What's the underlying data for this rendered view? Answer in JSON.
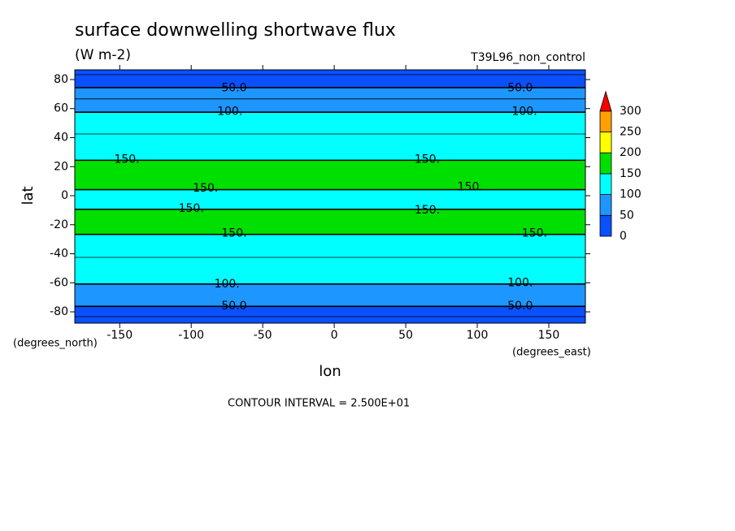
{
  "chart_data": {
    "type": "zonal_contour",
    "title": "surface downwelling shortwave flux",
    "subtitle": "(W m-2)",
    "dataset": "T39L96_non_control",
    "x_label": "lon",
    "y_label": "lat",
    "x_units": "(degrees_east)",
    "y_units": "(degrees_north)",
    "note": "CONTOUR INTERVAL = 2.500E+01",
    "contour_interval": 25,
    "xlim": [
      -181.4,
      175.6
    ],
    "ylim": [
      -87.8,
      86.7
    ],
    "xticks": [
      -150,
      -100,
      -50,
      0,
      50,
      100,
      150
    ],
    "yticks": [
      -80,
      -60,
      -40,
      -20,
      0,
      20,
      40,
      60,
      80
    ],
    "y": [
      85,
      80,
      75,
      70,
      65,
      60,
      55,
      50,
      45,
      40,
      35,
      30,
      25,
      20,
      15,
      10,
      5,
      0,
      -5,
      -10,
      -15,
      -20,
      -25,
      -30,
      -35,
      -40,
      -45,
      -50,
      -55,
      -60,
      -65,
      -70,
      -75,
      -80,
      -85
    ],
    "values": [
      20,
      35,
      48,
      65,
      80,
      95,
      105,
      115,
      122,
      128,
      134,
      140,
      148,
      165,
      175,
      170,
      152,
      140,
      135,
      152,
      170,
      168,
      155,
      140,
      132,
      128,
      122,
      116,
      110,
      102,
      90,
      75,
      55,
      35,
      20
    ],
    "levels": [
      0,
      50,
      100,
      150,
      200,
      250,
      300
    ],
    "level_colors": [
      "#0a50ff",
      "#1e96ff",
      "#00ffff",
      "#00e000",
      "#ffff00",
      "#ffa000",
      "#ff0000"
    ],
    "contour_labels": [
      {
        "label": "50.0",
        "lon": -70,
        "lat": 74
      },
      {
        "label": "50.0",
        "lon": 130,
        "lat": 74
      },
      {
        "label": "100.",
        "lon": -73,
        "lat": 58
      },
      {
        "label": "100.",
        "lon": 133,
        "lat": 58
      },
      {
        "label": "150.",
        "lon": -145,
        "lat": 25
      },
      {
        "label": "150.",
        "lon": 65,
        "lat": 25
      },
      {
        "label": "150.",
        "lon": -90,
        "lat": 5
      },
      {
        "label": "150.",
        "lon": 95,
        "lat": 6
      },
      {
        "label": "150.",
        "lon": -100,
        "lat": -9
      },
      {
        "label": "150.",
        "lon": 65,
        "lat": -10
      },
      {
        "label": "150.",
        "lon": -70,
        "lat": -26
      },
      {
        "label": "150.",
        "lon": 140,
        "lat": -26
      },
      {
        "label": "100.",
        "lon": -75,
        "lat": -61
      },
      {
        "label": "100.",
        "lon": 130,
        "lat": -60
      },
      {
        "label": "50.0",
        "lon": -70,
        "lat": -76
      },
      {
        "label": "50.0",
        "lon": 130,
        "lat": -76
      }
    ]
  }
}
